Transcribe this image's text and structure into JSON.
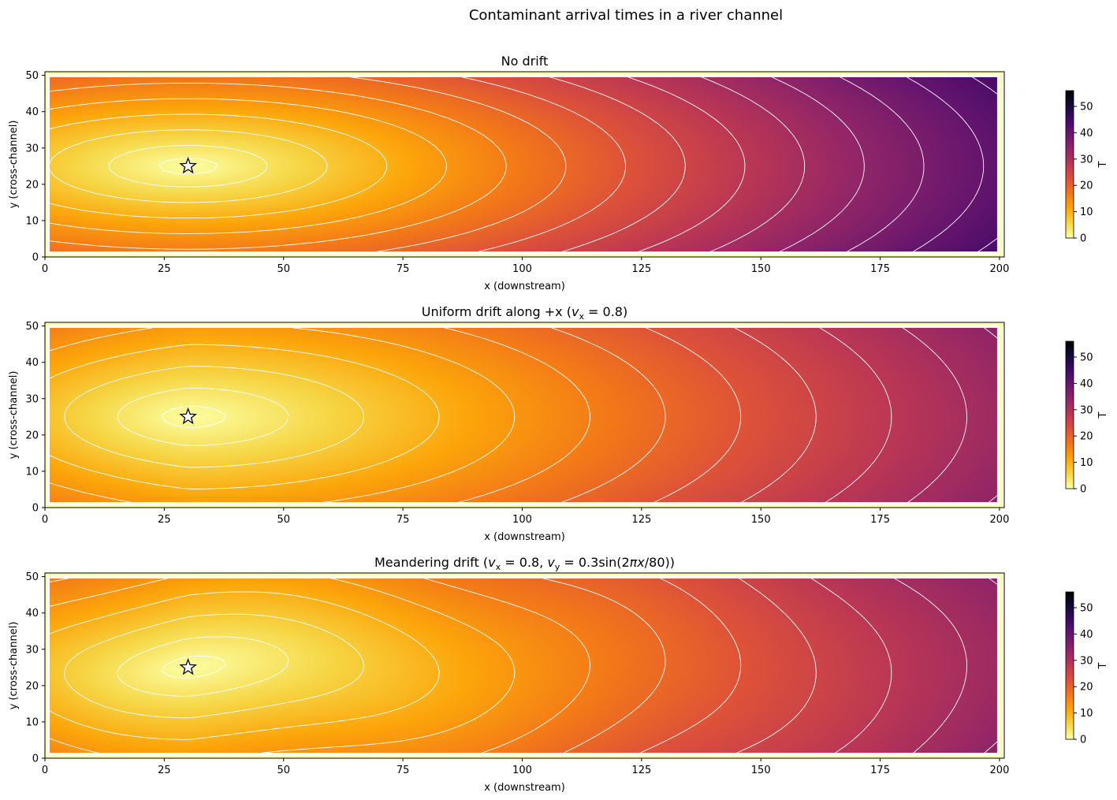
{
  "figure": {
    "title": "Contaminant arrival times in a river channel"
  },
  "chart_data": [
    {
      "type": "heatmap",
      "title": "No drift",
      "title_parts": [
        {
          "t": "No drift"
        }
      ],
      "xlabel": "x (downstream)",
      "ylabel": "y (cross-channel)",
      "xlim": [
        0,
        201
      ],
      "ylim": [
        0,
        51
      ],
      "xticks": [
        0,
        25,
        50,
        75,
        100,
        125,
        150,
        175,
        200
      ],
      "yticks": [
        0,
        10,
        20,
        30,
        40,
        50
      ],
      "colorbar": {
        "label": "T",
        "min": 0,
        "max": 56,
        "ticks": [
          0,
          10,
          20,
          30,
          40,
          50
        ],
        "colormap": "inferno_r"
      },
      "source": {
        "x": 30,
        "y": 25,
        "marker": "star"
      },
      "drift": {
        "vx": 0,
        "vy_amp": 0,
        "wavelength": 80
      },
      "contours": {
        "color": "#ffffff",
        "levels": [
          1.5,
          4,
          7,
          10,
          13,
          16,
          19,
          22,
          25,
          28,
          31,
          34,
          37,
          40,
          43,
          46,
          49,
          52,
          55
        ]
      },
      "boundary_color": "#fcffa4"
    },
    {
      "type": "heatmap",
      "title": "Uniform drift along +x (v_x = 0.8)",
      "title_parts": [
        {
          "t": "Uniform drift along +x ("
        },
        {
          "t": "v",
          "i": true
        },
        {
          "t": "x",
          "sub": true
        },
        {
          "t": " = 0.8)"
        }
      ],
      "xlabel": "x (downstream)",
      "ylabel": "y (cross-channel)",
      "xlim": [
        0,
        201
      ],
      "ylim": [
        0,
        51
      ],
      "xticks": [
        0,
        25,
        50,
        75,
        100,
        125,
        150,
        175,
        200
      ],
      "yticks": [
        0,
        10,
        20,
        30,
        40,
        50
      ],
      "colorbar": {
        "label": "T",
        "min": 0,
        "max": 56,
        "ticks": [
          0,
          10,
          20,
          30,
          40,
          50
        ],
        "colormap": "inferno_r"
      },
      "source": {
        "x": 30,
        "y": 25,
        "marker": "star"
      },
      "drift": {
        "vx": 0.8,
        "vy_amp": 0,
        "wavelength": 80
      },
      "contours": {
        "color": "#ffffff",
        "levels": [
          1.5,
          4,
          7,
          10,
          13,
          16,
          19,
          22,
          25,
          28,
          31,
          34,
          37,
          40,
          43
        ]
      },
      "boundary_color": "#fcffa4"
    },
    {
      "type": "heatmap",
      "title": "Meandering drift (v_x = 0.8, v_y = 0.3sin(2πx/80))",
      "title_parts": [
        {
          "t": "Meandering drift ("
        },
        {
          "t": "v",
          "i": true
        },
        {
          "t": "x",
          "sub": true
        },
        {
          "t": " = 0.8, "
        },
        {
          "t": "v",
          "i": true
        },
        {
          "t": "y",
          "sub": true
        },
        {
          "t": " = 0.3sin(2"
        },
        {
          "t": "πx",
          "i": true
        },
        {
          "t": "/80))"
        }
      ],
      "xlabel": "x (downstream)",
      "ylabel": "y (cross-channel)",
      "xlim": [
        0,
        201
      ],
      "ylim": [
        0,
        51
      ],
      "xticks": [
        0,
        25,
        50,
        75,
        100,
        125,
        150,
        175,
        200
      ],
      "yticks": [
        0,
        10,
        20,
        30,
        40,
        50
      ],
      "colorbar": {
        "label": "T",
        "min": 0,
        "max": 56,
        "ticks": [
          0,
          10,
          20,
          30,
          40,
          50
        ],
        "colormap": "inferno_r"
      },
      "source": {
        "x": 30,
        "y": 25,
        "marker": "star"
      },
      "drift": {
        "vx": 0.8,
        "vy_amp": 0.3,
        "wavelength": 80
      },
      "contours": {
        "color": "#ffffff",
        "levels": [
          1.5,
          4,
          7,
          10,
          13,
          16,
          19,
          22,
          25,
          28,
          31,
          34,
          37,
          40,
          43
        ]
      },
      "boundary_color": "#fcffa4"
    }
  ]
}
